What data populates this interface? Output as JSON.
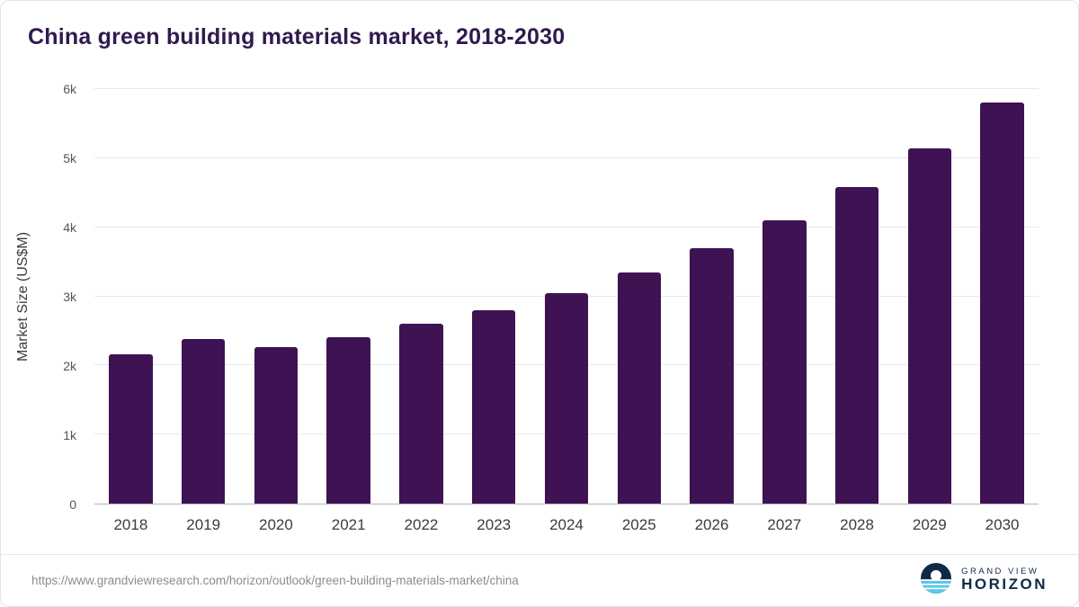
{
  "chart_data": {
    "type": "bar",
    "title": "China green building materials market, 2018-2030",
    "categories": [
      "2018",
      "2019",
      "2020",
      "2021",
      "2022",
      "2023",
      "2024",
      "2025",
      "2026",
      "2027",
      "2028",
      "2029",
      "2030"
    ],
    "values": [
      2160,
      2380,
      2270,
      2410,
      2600,
      2800,
      3050,
      3350,
      3700,
      4100,
      4580,
      5140,
      5800
    ],
    "xlabel": "",
    "ylabel": "Market Size (US$M)",
    "ylim": [
      0,
      6000
    ],
    "ytick_values": [
      0,
      1000,
      2000,
      3000,
      4000,
      5000,
      6000
    ],
    "ytick_labels": [
      "0",
      "1k",
      "2k",
      "3k",
      "4k",
      "5k",
      "6k"
    ],
    "bar_color": "#3e1253",
    "grid": true,
    "legend": false
  },
  "footer": {
    "source_url": "https://www.grandviewresearch.com/horizon/outlook/green-building-materials-market/china",
    "logo_top": "GRAND VIEW",
    "logo_bottom": "HORIZON",
    "logo_navy": "#0e2a47",
    "logo_cyan": "#5bc6e8"
  }
}
